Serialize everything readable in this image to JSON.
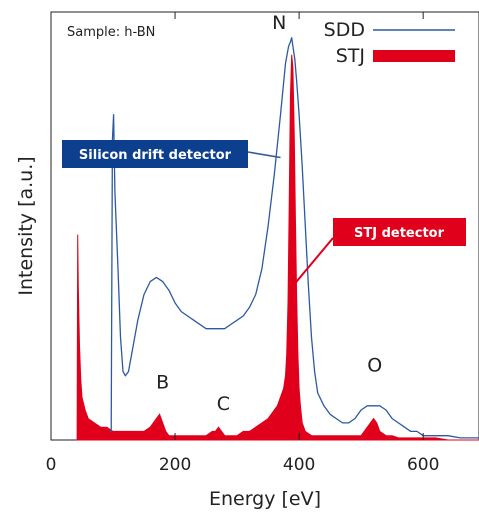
{
  "chart_data": {
    "type": "line",
    "xlabel": "Energy [eV]",
    "ylabel": "Intensity [a.u.]",
    "xlim": [
      0,
      690
    ],
    "ylim": [
      0,
      100
    ],
    "x_ticks": [
      0,
      200,
      400,
      600
    ],
    "y_ticks": [],
    "grid": false,
    "legend_position": "top-right",
    "sample_label": "Sample: h-BN",
    "colors": {
      "sdd": "#2c5aa0",
      "stj": "#e0001b",
      "sdd_callout": "#0d3f8f",
      "stj_callout": "#e0001b"
    },
    "series": [
      {
        "name": "SDD",
        "style": "line",
        "x": [
          95,
          97,
          99,
          101,
          103,
          105,
          108,
          112,
          116,
          120,
          125,
          130,
          140,
          150,
          160,
          170,
          180,
          190,
          200,
          210,
          220,
          230,
          240,
          250,
          260,
          270,
          280,
          290,
          300,
          310,
          320,
          330,
          340,
          350,
          360,
          370,
          378,
          383,
          386,
          388,
          390,
          393,
          396,
          400,
          405,
          410,
          415,
          420,
          425,
          430,
          440,
          450,
          460,
          470,
          480,
          490,
          500,
          510,
          520,
          530,
          540,
          550,
          560,
          570,
          580,
          590,
          600,
          620,
          640,
          660,
          690
        ],
        "values": [
          2,
          2,
          70,
          76,
          58,
          51,
          40,
          24,
          16,
          15,
          16,
          20,
          28,
          34,
          37,
          38,
          37,
          35,
          32,
          30,
          29,
          28,
          27,
          26,
          26,
          26,
          26,
          27,
          28,
          29,
          31,
          34,
          40,
          50,
          62,
          76,
          88,
          92,
          93,
          94,
          92,
          89,
          84,
          76,
          64,
          50,
          36,
          24,
          16,
          11,
          8,
          6,
          5,
          4,
          4,
          5,
          7,
          8,
          8,
          8,
          7,
          5,
          4,
          3,
          2,
          2,
          1,
          1,
          1,
          0.5,
          0.5
        ]
      },
      {
        "name": "STJ",
        "style": "filled",
        "x": [
          42,
          43,
          44,
          46,
          48,
          50,
          55,
          60,
          70,
          80,
          90,
          100,
          110,
          120,
          130,
          140,
          150,
          160,
          165,
          170,
          175,
          180,
          185,
          190,
          200,
          210,
          220,
          230,
          240,
          250,
          260,
          265,
          270,
          275,
          280,
          290,
          300,
          310,
          320,
          330,
          340,
          350,
          360,
          365,
          370,
          375,
          378,
          380,
          382,
          384,
          386,
          388,
          390,
          392,
          394,
          396,
          398,
          400,
          402,
          405,
          410,
          420,
          430,
          440,
          450,
          460,
          470,
          480,
          490,
          500,
          505,
          510,
          515,
          520,
          525,
          530,
          540,
          550,
          560,
          580,
          600,
          620,
          640,
          660,
          690
        ],
        "values": [
          0,
          48,
          36,
          22,
          14,
          10,
          7,
          5,
          4,
          3,
          3,
          2,
          2,
          2,
          2,
          2,
          2,
          3,
          4,
          5,
          6,
          4,
          2,
          1,
          1,
          1,
          1,
          1,
          1,
          1,
          2,
          2,
          3,
          2,
          1,
          1,
          1,
          2,
          2,
          3,
          4,
          5,
          7,
          8,
          10,
          12,
          15,
          20,
          32,
          55,
          80,
          90,
          87,
          72,
          52,
          34,
          20,
          12,
          8,
          4,
          2,
          1,
          1,
          1,
          1,
          1,
          1,
          1,
          1,
          1,
          2,
          3,
          4,
          5,
          4,
          2,
          1,
          1,
          0.5,
          0.5,
          0.5,
          0.5,
          0,
          0,
          0
        ]
      }
    ],
    "annotations": {
      "peaks": [
        {
          "label": "N",
          "x": 368,
          "y": 96
        },
        {
          "label": "B",
          "x": 180,
          "y": 12
        },
        {
          "label": "C",
          "x": 278,
          "y": 7
        },
        {
          "label": "O",
          "x": 522,
          "y": 16
        }
      ],
      "callouts": [
        {
          "text": "Silicon drift detector",
          "series": "SDD",
          "point_x": 370,
          "point_y": 66
        },
        {
          "text": "STJ detector",
          "series": "STJ",
          "point_x": 390,
          "point_y": 36
        }
      ]
    }
  }
}
